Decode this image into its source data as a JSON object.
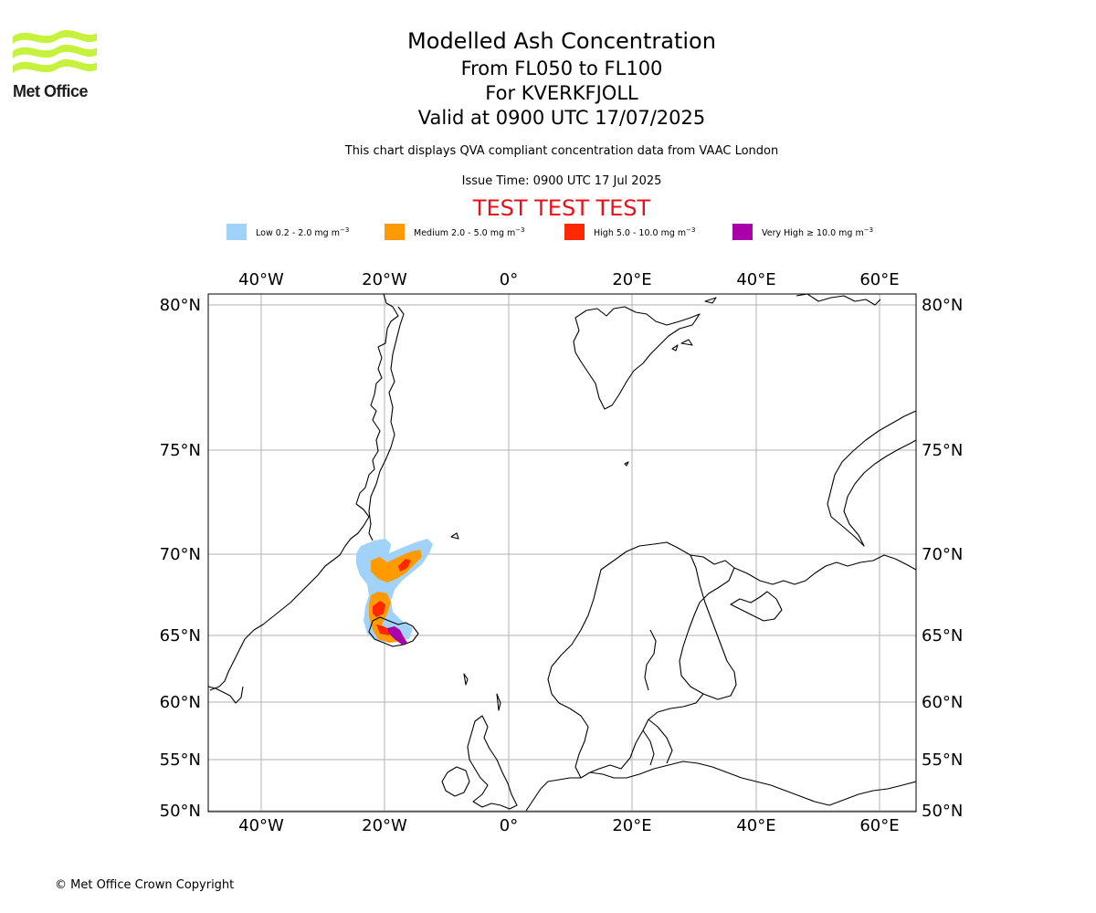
{
  "logo": {
    "text": "Met Office",
    "color": "#c6f23e"
  },
  "title": {
    "main": "Modelled Ash Concentration",
    "levels": "From FL050 to FL100",
    "volcano": "For KVERKFJOLL",
    "valid": "Valid at 0900 UTC 17/07/2025"
  },
  "disclaimer": "This chart displays QVA compliant concentration data from VAAC London",
  "issue_time": "Issue Time: 0900 UTC 17 Jul 2025",
  "test_banner": "TEST TEST TEST",
  "legend": [
    {
      "label": "Low 0.2 - 2.0 mg m",
      "color": "#a0d2fa"
    },
    {
      "label": "Medium 2.0 - 5.0 mg m",
      "color": "#ff9b00"
    },
    {
      "label": "High 5.0 - 10.0 mg m",
      "color": "#ff2800"
    },
    {
      "label": "Very High ≥ 10.0 mg m",
      "color": "#aa00aa"
    }
  ],
  "legend_exponent": "−3",
  "map": {
    "lon_ticks": [
      "40°W",
      "20°W",
      "0°",
      "20°E",
      "40°E",
      "60°E"
    ],
    "lat_ticks": [
      "80°N",
      "75°N",
      "70°N",
      "65°N",
      "60°N",
      "55°N",
      "50°N"
    ],
    "grid_color": "#b0b0b0",
    "coast_color": "#000000"
  },
  "copyright": "© Met Office Crown Copyright"
}
